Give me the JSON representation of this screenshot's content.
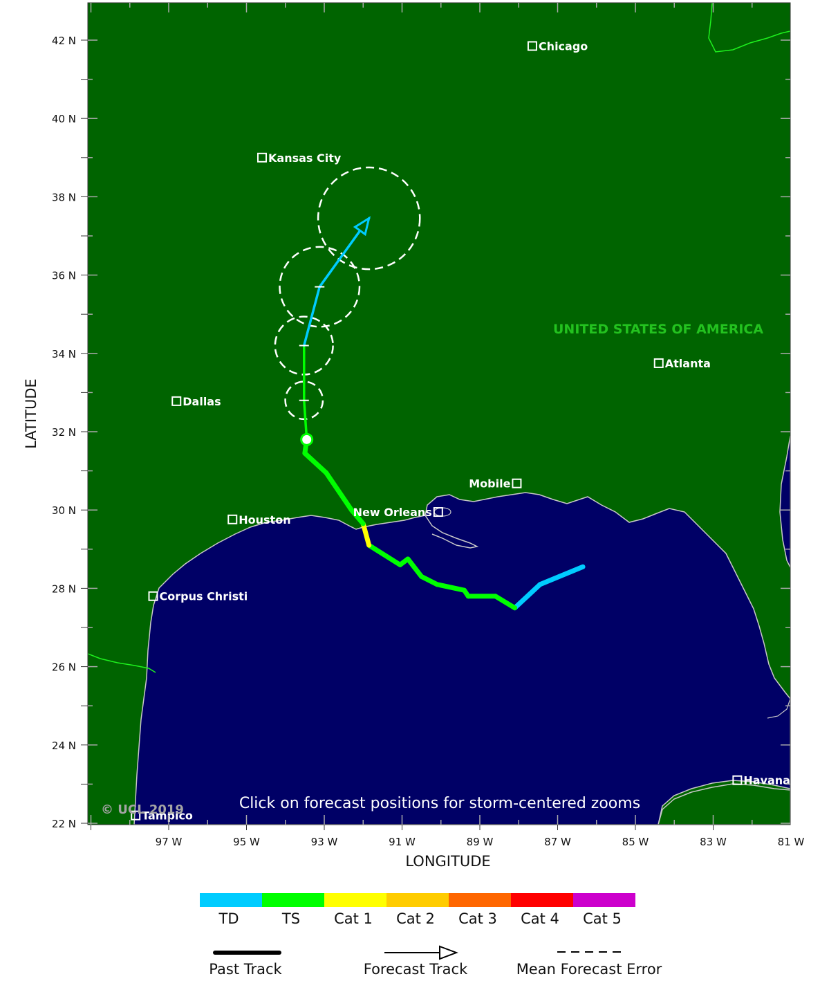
{
  "map": {
    "lat_labels": [
      "42 N",
      "40 N",
      "38 N",
      "36 N",
      "34 N",
      "32 N",
      "30 N",
      "28 N",
      "26 N",
      "24 N",
      "22 N"
    ],
    "lon_labels": [
      "97 W",
      "95 W",
      "93 W",
      "91 W",
      "89 W",
      "87 W",
      "85 W",
      "83 W",
      "81 W"
    ],
    "x_title": "LONGITUDE",
    "y_title": "LATITUDE",
    "country_label": "UNITED STATES OF AMERICA",
    "notice": "Click on forecast positions for storm-centered zooms",
    "copyright": "© UCL 2019",
    "colors": {
      "land": "#006400",
      "ocean": "#000066",
      "coast": "#c8c8c8",
      "border": "#1ef21e"
    },
    "cities": [
      {
        "name": "Chicago",
        "lat": 41.85,
        "lon": -87.65,
        "label_side": "right"
      },
      {
        "name": "Kansas City",
        "lat": 39.0,
        "lon": -94.6,
        "label_side": "right"
      },
      {
        "name": "Dallas",
        "lat": 32.78,
        "lon": -96.8,
        "label_side": "right"
      },
      {
        "name": "Atlanta",
        "lat": 33.75,
        "lon": -84.4,
        "label_side": "right"
      },
      {
        "name": "Mobile",
        "lat": 30.68,
        "lon": -88.05,
        "label_side": "left"
      },
      {
        "name": "New Orleans",
        "lat": 29.95,
        "lon": -90.07,
        "label_side": "left"
      },
      {
        "name": "Houston",
        "lat": 29.76,
        "lon": -95.36,
        "label_side": "right"
      },
      {
        "name": "Corpus Christi",
        "lat": 27.8,
        "lon": -97.4,
        "label_side": "right"
      },
      {
        "name": "Tampico",
        "lat": 22.2,
        "lon": -97.85,
        "label_side": "right"
      },
      {
        "name": "Havana",
        "lat": 23.1,
        "lon": -82.38,
        "label_side": "right"
      }
    ]
  },
  "storm": {
    "past_track": [
      {
        "lat": 28.55,
        "lon": -86.35,
        "cat": "TD"
      },
      {
        "lat": 28.1,
        "lon": -87.45,
        "cat": "TD"
      },
      {
        "lat": 27.5,
        "lon": -88.1,
        "cat": "TD"
      },
      {
        "lat": 27.8,
        "lon": -88.6,
        "cat": "TS"
      },
      {
        "lat": 27.8,
        "lon": -89.3,
        "cat": "TS"
      },
      {
        "lat": 27.95,
        "lon": -89.4,
        "cat": "TS"
      },
      {
        "lat": 28.1,
        "lon": -90.1,
        "cat": "TS"
      },
      {
        "lat": 28.3,
        "lon": -90.5,
        "cat": "TS"
      },
      {
        "lat": 28.75,
        "lon": -90.85,
        "cat": "TS"
      },
      {
        "lat": 28.6,
        "lon": -91.05,
        "cat": "TS"
      },
      {
        "lat": 29.1,
        "lon": -91.85,
        "cat": "TS"
      },
      {
        "lat": 29.65,
        "lon": -92.0,
        "cat": "Cat 1"
      },
      {
        "lat": 30.0,
        "lon": -92.3,
        "cat": "TS"
      },
      {
        "lat": 30.95,
        "lon": -92.95,
        "cat": "TS"
      },
      {
        "lat": 31.45,
        "lon": -93.5,
        "cat": "TS"
      },
      {
        "lat": 31.8,
        "lon": -93.45,
        "cat": "TS"
      }
    ],
    "forecast_track": [
      {
        "lat": 31.8,
        "lon": -93.45,
        "cat": "TS",
        "err_radius_deg": 0
      },
      {
        "lat": 32.8,
        "lon": -93.52,
        "cat": "TS",
        "err_radius_deg": 0.48
      },
      {
        "lat": 34.2,
        "lon": -93.52,
        "cat": "TD",
        "err_radius_deg": 0.74
      },
      {
        "lat": 35.7,
        "lon": -93.12,
        "cat": "TD",
        "err_radius_deg": 1.02
      },
      {
        "lat": 37.45,
        "lon": -91.85,
        "cat": "TD",
        "err_radius_deg": 1.3
      }
    ]
  },
  "legend": {
    "categories": [
      {
        "label": "TD",
        "color": "#00ccff"
      },
      {
        "label": "TS",
        "color": "#00ff00"
      },
      {
        "label": "Cat 1",
        "color": "#ffff00"
      },
      {
        "label": "Cat 2",
        "color": "#ffcc00"
      },
      {
        "label": "Cat 3",
        "color": "#ff6600"
      },
      {
        "label": "Cat 4",
        "color": "#ff0000"
      },
      {
        "label": "Cat 5",
        "color": "#cc00cc"
      }
    ],
    "past_label": "Past Track",
    "forecast_label": "Forecast Track",
    "error_label": "Mean Forecast Error"
  }
}
